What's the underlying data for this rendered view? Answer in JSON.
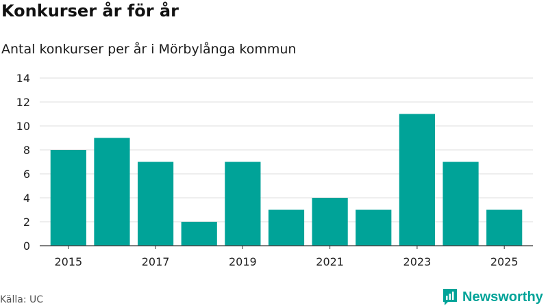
{
  "header": {
    "title": "Konkurser år för år",
    "subtitle": "Antal konkurser per år i Mörbylånga kommun"
  },
  "footer": {
    "source": "Källa: UC",
    "brand": "Newsworthy"
  },
  "colors": {
    "bar": "#00a398",
    "brand": "#00a398"
  },
  "chart_data": {
    "type": "bar",
    "categories": [
      "2015",
      "2016",
      "2017",
      "2018",
      "2019",
      "2020",
      "2021",
      "2022",
      "2023",
      "2024",
      "2025"
    ],
    "values": [
      8,
      9,
      7,
      2,
      7,
      3,
      4,
      3,
      11,
      7,
      3
    ],
    "x_tick_labels": [
      "2015",
      "2017",
      "2019",
      "2021",
      "2023",
      "2025"
    ],
    "y_ticks": [
      0,
      2,
      4,
      6,
      8,
      10,
      12,
      14
    ],
    "ylim": [
      0,
      14
    ],
    "grid": true,
    "legend": "none"
  }
}
